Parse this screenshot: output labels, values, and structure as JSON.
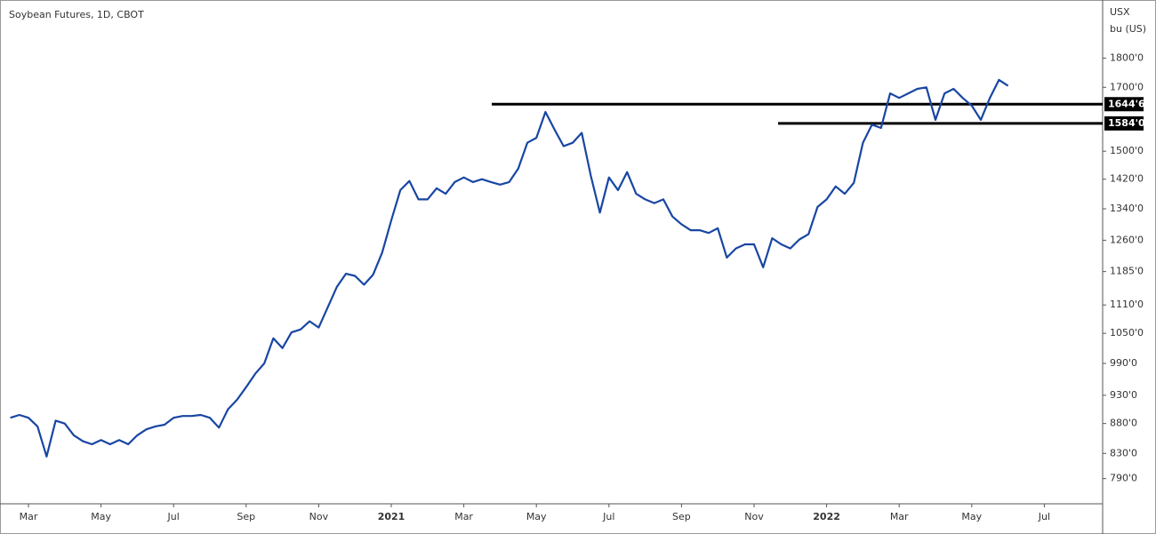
{
  "chart_data": {
    "type": "line",
    "title": "Soybean Futures, 1D, CBOT",
    "unit": [
      "USX",
      "bu (US)"
    ],
    "log": true,
    "ylim": [
      752,
      2010
    ],
    "yticks": [
      {
        "value": 790,
        "label": "790'0"
      },
      {
        "value": 830,
        "label": "830'0"
      },
      {
        "value": 880,
        "label": "880'0"
      },
      {
        "value": 930,
        "label": "930'0"
      },
      {
        "value": 990,
        "label": "990'0"
      },
      {
        "value": 1050,
        "label": "1050'0"
      },
      {
        "value": 1110,
        "label": "1110'0"
      },
      {
        "value": 1185,
        "label": "1185'0"
      },
      {
        "value": 1260,
        "label": "1260'0"
      },
      {
        "value": 1340,
        "label": "1340'0"
      },
      {
        "value": 1420,
        "label": "1420'0"
      },
      {
        "value": 1500,
        "label": "1500'0"
      },
      {
        "value": 1700,
        "label": "1700'0"
      },
      {
        "value": 1800,
        "label": "1800'0"
      }
    ],
    "hlines": [
      {
        "value": 1644.75,
        "label": "1644'6"
      },
      {
        "value": 1584,
        "label": "1584'0"
      }
    ],
    "categories": [
      null,
      null,
      "Mar",
      null,
      null,
      null,
      null,
      null,
      null,
      null,
      "May",
      null,
      null,
      null,
      null,
      null,
      null,
      null,
      "Jul",
      null,
      null,
      null,
      null,
      null,
      null,
      null,
      "Sep",
      null,
      null,
      null,
      null,
      null,
      null,
      null,
      "Nov",
      null,
      null,
      null,
      null,
      null,
      null,
      null,
      "2021",
      null,
      null,
      null,
      null,
      null,
      null,
      null,
      "Mar",
      null,
      null,
      null,
      null,
      null,
      null,
      null,
      "May",
      null,
      null,
      null,
      null,
      null,
      null,
      null,
      "Jul",
      null,
      null,
      null,
      null,
      null,
      null,
      null,
      "Sep",
      null,
      null,
      null,
      null,
      null,
      null,
      null,
      "Nov",
      null,
      null,
      null,
      null,
      null,
      null,
      null,
      "2022",
      null,
      null,
      null,
      null,
      null,
      null,
      null,
      "Mar",
      null,
      null,
      null,
      null,
      null,
      null,
      null,
      "May",
      null,
      null,
      null,
      null,
      null,
      null,
      null,
      "Jul"
    ],
    "series": [
      {
        "color": "#1846a3",
        "values": [
          890,
          895,
          890,
          875,
          825,
          885,
          880,
          860,
          850,
          845,
          852,
          845,
          852,
          845,
          860,
          870,
          875,
          878,
          890,
          893,
          893,
          895,
          890,
          873,
          905,
          922,
          945,
          970,
          990,
          1040,
          1020,
          1052,
          1058,
          1075,
          1062,
          1105,
          1150,
          1180,
          1175,
          1155,
          1178,
          1230,
          1310,
          1390,
          1415,
          1365,
          1365,
          1395,
          1380,
          1412,
          1425,
          1412,
          1420,
          1412,
          1405,
          1412,
          1450,
          1525,
          1540,
          1620,
          1565,
          1515,
          1525,
          1555,
          1430,
          1330,
          1425,
          1390,
          1440,
          1380,
          1365,
          1355,
          1365,
          1320,
          1300,
          1285,
          1285,
          1278,
          1290,
          1218,
          1240,
          1250,
          1250,
          1195,
          1265,
          1250,
          1240,
          1262,
          1275,
          1345,
          1365,
          1400,
          1380,
          1410,
          1525,
          1580,
          1570,
          1680,
          1665,
          1680,
          1695,
          1700,
          1595,
          1680,
          1695,
          1665,
          1640,
          1595,
          1665,
          1725,
          1705,
          null,
          null,
          null,
          null
        ]
      }
    ]
  }
}
